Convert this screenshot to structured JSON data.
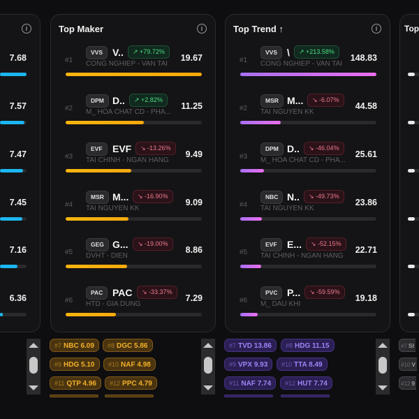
{
  "colors": {
    "maker_bar": "#f7a90c",
    "trend_bar_start": "#a970f5",
    "trend_bar_end": "#ec6ef0",
    "left_bar": "#1cb7f2"
  },
  "left_card": {
    "info_icon": "info-icon",
    "rows": [
      {
        "value": "7.68"
      },
      {
        "value": "7.57"
      },
      {
        "value": "7.47"
      },
      {
        "value": "7.45"
      },
      {
        "value": "7.16"
      },
      {
        "value": "6.36"
      }
    ]
  },
  "top_maker": {
    "title": "Top Maker",
    "rows": [
      {
        "rank": "#1",
        "ticker": "VVS",
        "name": "V..",
        "change": "+79.72%",
        "dir": "up",
        "sector": "CONG NGHIEP - VAN TAI",
        "value": "19.67"
      },
      {
        "rank": "#2",
        "ticker": "DPM",
        "name": "D..",
        "change": "+2.82%",
        "dir": "up",
        "sector": "M_ HOA CHAT CD - PHA...",
        "value": "11.25"
      },
      {
        "rank": "#3",
        "ticker": "EVF",
        "name": "EVF",
        "change": "-13.26%",
        "dir": "down",
        "sector": "TAI CHINH - NGAN HANG",
        "value": "9.49"
      },
      {
        "rank": "#4",
        "ticker": "MSR",
        "name": "M...",
        "change": "-16.90%",
        "dir": "down",
        "sector": "TAI NGUYEN KK",
        "value": "9.09"
      },
      {
        "rank": "#5",
        "ticker": "GEG",
        "name": "G...",
        "change": "-19.00%",
        "dir": "down",
        "sector": "DVHT - DIEN",
        "value": "8.86"
      },
      {
        "rank": "#6",
        "ticker": "PAC",
        "name": "PAC",
        "change": "-33.37%",
        "dir": "down",
        "sector": "HTD - GIA DUNG",
        "value": "7.29"
      }
    ],
    "chips": [
      {
        "rank": "#7",
        "ticker": "NBC",
        "value": "6.09"
      },
      {
        "rank": "#8",
        "ticker": "DGC",
        "value": "5.86"
      },
      {
        "rank": "#9",
        "ticker": "HDG",
        "value": "5.10"
      },
      {
        "rank": "#10",
        "ticker": "NAF",
        "value": "4.98"
      },
      {
        "rank": "#11",
        "ticker": "QTP",
        "value": "4.96"
      },
      {
        "rank": "#12",
        "ticker": "PPC",
        "value": "4.79"
      }
    ]
  },
  "top_trend": {
    "title": "Top Trend ↑",
    "rows": [
      {
        "rank": "#1",
        "ticker": "VVS",
        "name": "\\",
        "change": "+213.58%",
        "dir": "up",
        "sector": "CONG NGHIEP - VAN TAI",
        "value": "148.83"
      },
      {
        "rank": "#2",
        "ticker": "MSR",
        "name": "M...",
        "change": "-6.07%",
        "dir": "down",
        "sector": "TAI NGUYEN KK",
        "value": "44.58"
      },
      {
        "rank": "#3",
        "ticker": "DPM",
        "name": "D..",
        "change": "-46.04%",
        "dir": "down",
        "sector": "M_ HOA CHAT CD - PHA...",
        "value": "25.61"
      },
      {
        "rank": "#4",
        "ticker": "NBC",
        "name": "N..",
        "change": "-49.73%",
        "dir": "down",
        "sector": "TAI NGUYEN KK",
        "value": "23.86"
      },
      {
        "rank": "#5",
        "ticker": "EVF",
        "name": "E...",
        "change": "-52.15%",
        "dir": "down",
        "sector": "TAI CHINH - NGAN HANG",
        "value": "22.71"
      },
      {
        "rank": "#6",
        "ticker": "PVC",
        "name": "P...",
        "change": "-59.59%",
        "dir": "down",
        "sector": "M_ DAU KHI",
        "value": "19.18"
      }
    ],
    "chips": [
      {
        "rank": "#7",
        "ticker": "TVD",
        "value": "13.86"
      },
      {
        "rank": "#8",
        "ticker": "HDG",
        "value": "11.15"
      },
      {
        "rank": "#9",
        "ticker": "VPX",
        "value": "9.93"
      },
      {
        "rank": "#10",
        "ticker": "TTA",
        "value": "8.49"
      },
      {
        "rank": "#11",
        "ticker": "NAF",
        "value": "7.74"
      },
      {
        "rank": "#12",
        "ticker": "HUT",
        "value": "7.74"
      }
    ]
  },
  "right_card": {
    "title": "Top",
    "chips": [
      {
        "rank": "#7",
        "ticker": "SI"
      },
      {
        "rank": "#10",
        "ticker": "V"
      },
      {
        "rank": "#12",
        "ticker": "9"
      }
    ]
  }
}
